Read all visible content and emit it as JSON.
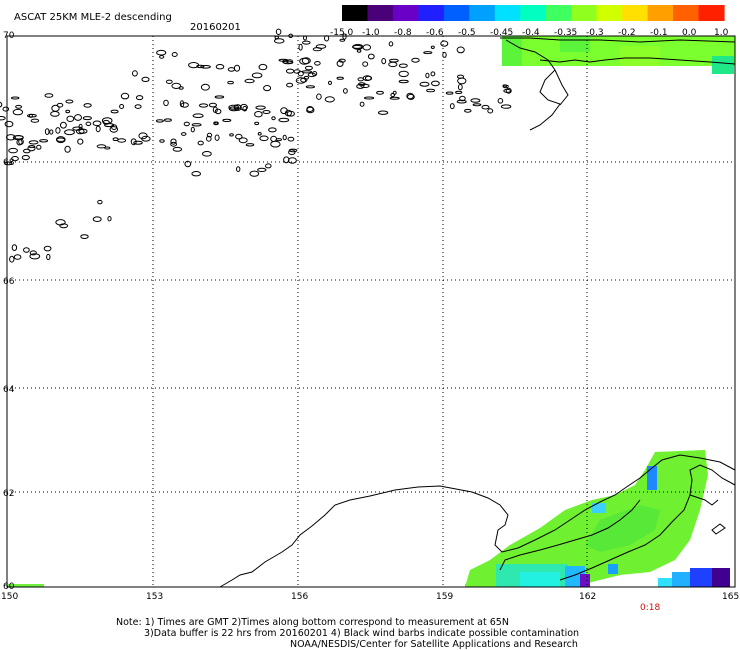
{
  "header": {
    "title": "ASCAT 25KM MLE-2 descending",
    "date": "20160201"
  },
  "colorbar": {
    "labels": [
      "-15.0",
      "-1.0",
      "-0.8",
      "-0.6",
      "-0.5",
      "-0.45",
      "-0.4",
      "-0.35",
      "-0.3",
      "-0.2",
      "-0.1",
      "0.0",
      "1.0"
    ],
    "colors": [
      "#000000",
      "#4a0078",
      "#6a00c8",
      "#2020ff",
      "#0060ff",
      "#00a0ff",
      "#00e0ff",
      "#00ffc0",
      "#40ff60",
      "#90ff20",
      "#d0ff00",
      "#ffe000",
      "#ffa000",
      "#ff6000",
      "#ff2000"
    ]
  },
  "map": {
    "lat_labels": [
      "70",
      "68",
      "66",
      "64",
      "62",
      "60"
    ],
    "lon_labels": [
      "150",
      "153",
      "156",
      "159",
      "162",
      "165"
    ],
    "time_label": "0:18"
  },
  "notes": {
    "line1": "Note: 1) Times are GMT 2)Times along bottom correspond to measurement at 65N",
    "line2": "3)Data buffer is 22 hrs from 20160201 4) Black wind barbs indicate possible contamination",
    "line3": "NOAA/NESDIS/Center for Satellite Applications and Research"
  }
}
